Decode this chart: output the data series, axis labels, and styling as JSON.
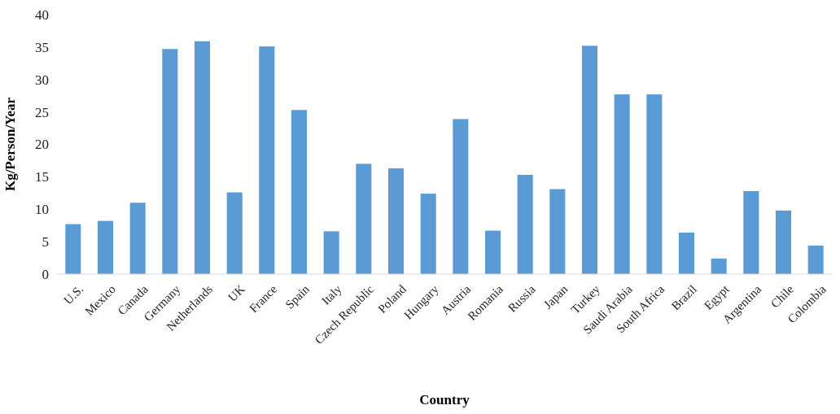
{
  "chart_data": {
    "type": "bar",
    "xlabel": "Country",
    "ylabel": "Kg/Person/Year",
    "categories": [
      "U.S.",
      "Mexico",
      "Canada",
      "Germany",
      "Netherlands",
      "UK",
      "France",
      "Spain",
      "Italy",
      "Czech Republic",
      "Poland",
      "Hungary",
      "Austria",
      "Romania",
      "Russia",
      "Japan",
      "Turkey",
      "Saudi Arabia",
      "South Africa",
      "Brazil",
      "Egypt",
      "Argentina",
      "Chile",
      "Colombia"
    ],
    "values": [
      7.7,
      8.2,
      11.0,
      34.7,
      35.9,
      12.6,
      35.1,
      25.3,
      6.6,
      17.0,
      16.3,
      12.4,
      23.9,
      6.7,
      15.3,
      13.1,
      35.2,
      27.7,
      27.7,
      6.4,
      2.4,
      12.8,
      9.8,
      4.4
    ],
    "color": "#5b9bd5",
    "ylim": [
      0,
      40
    ],
    "yticks": [
      0,
      5,
      10,
      15,
      20,
      25,
      30,
      35,
      40
    ],
    "grid": false
  }
}
